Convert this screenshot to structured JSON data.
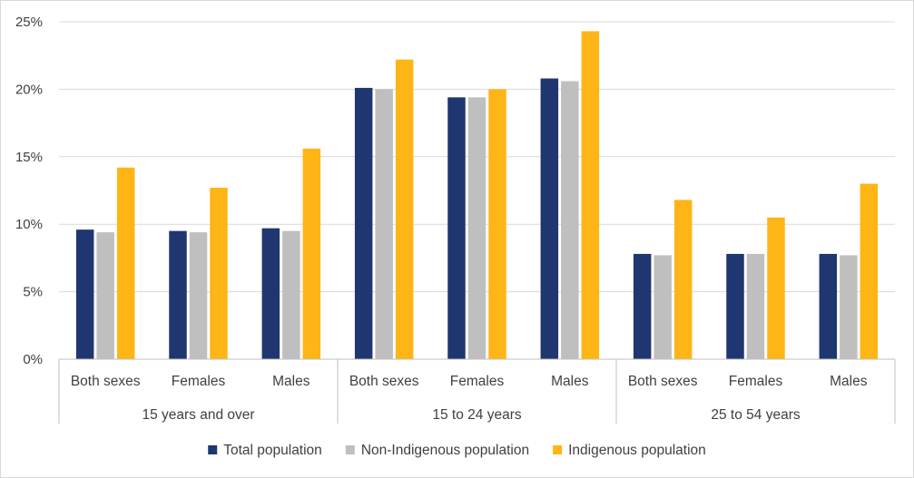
{
  "chart_data": {
    "type": "bar",
    "groups": [
      {
        "label": "15 years and over",
        "categories": [
          "Both sexes",
          "Females",
          "Males"
        ]
      },
      {
        "label": "15 to 24 years",
        "categories": [
          "Both sexes",
          "Females",
          "Males"
        ]
      },
      {
        "label": "25 to 54 years",
        "categories": [
          "Both sexes",
          "Females",
          "Males"
        ]
      }
    ],
    "series": [
      {
        "name": "Total population",
        "color": "#1f3670",
        "values": [
          9.6,
          9.5,
          9.7,
          20.1,
          19.4,
          20.8,
          7.8,
          7.8,
          7.8
        ]
      },
      {
        "name": "Non-Indigenous population",
        "color": "#bfbfbf",
        "values": [
          9.4,
          9.4,
          9.5,
          20.0,
          19.4,
          20.6,
          7.7,
          7.8,
          7.7
        ]
      },
      {
        "name": "Indigenous population",
        "color": "#ffb515",
        "values": [
          14.2,
          12.7,
          15.6,
          22.2,
          20.0,
          24.3,
          11.8,
          10.5,
          13.0
        ]
      }
    ],
    "y_ticks": [
      "0%",
      "5%",
      "10%",
      "15%",
      "20%",
      "25%"
    ],
    "ylim": [
      0,
      25
    ],
    "grid": true,
    "legend_position": "bottom",
    "title": "",
    "xlabel": "",
    "ylabel": ""
  }
}
